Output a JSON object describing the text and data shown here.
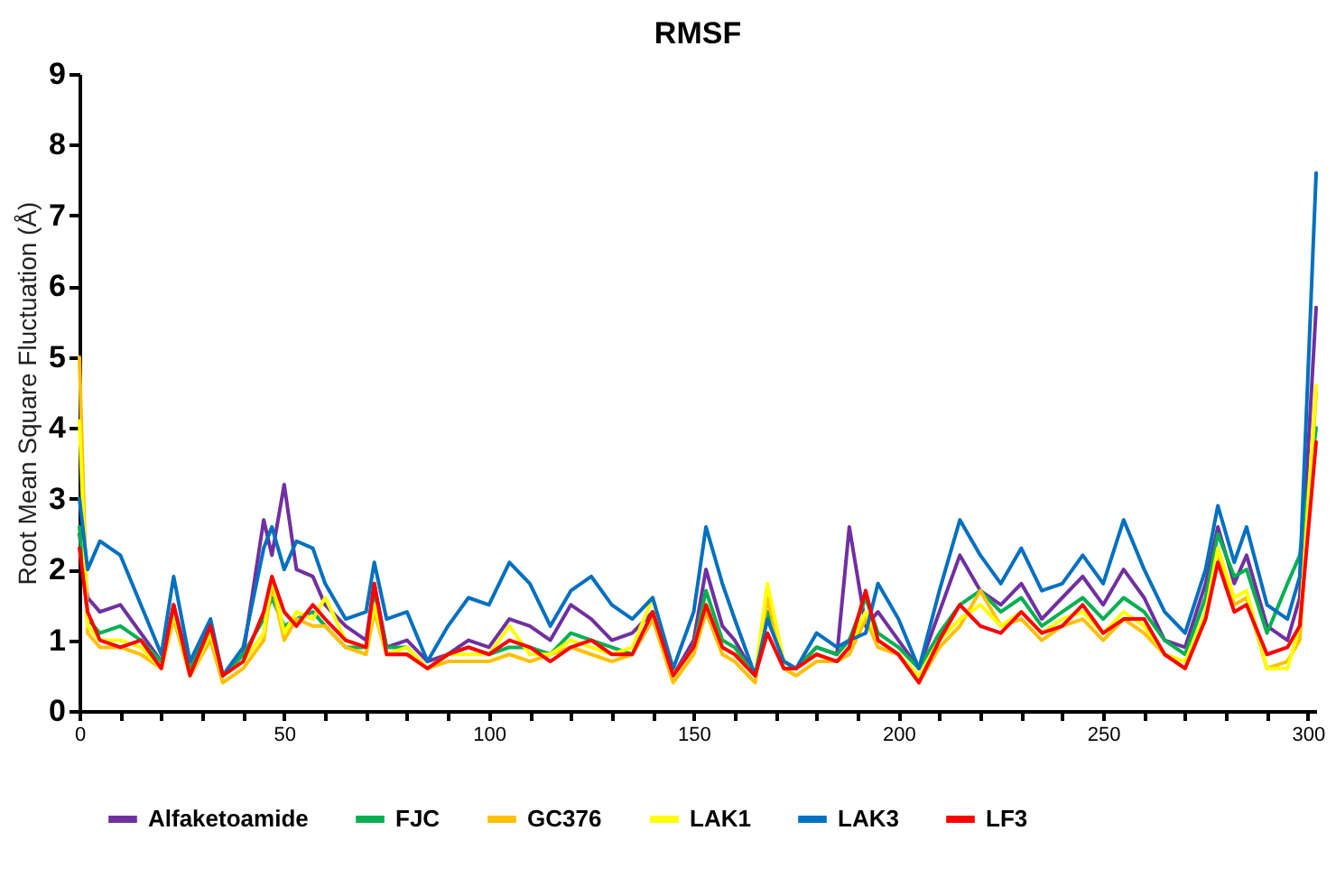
{
  "chart_data": {
    "type": "line",
    "title": "RMSF",
    "ylabel": "Root Mean Square Fluctuation (Å)",
    "x": [
      0,
      2,
      5,
      10,
      15,
      20,
      23,
      27,
      32,
      35,
      40,
      45,
      47,
      50,
      53,
      57,
      60,
      65,
      70,
      72,
      75,
      80,
      85,
      90,
      95,
      100,
      105,
      110,
      115,
      120,
      125,
      130,
      135,
      140,
      145,
      150,
      153,
      157,
      160,
      165,
      168,
      172,
      175,
      180,
      185,
      188,
      192,
      195,
      200,
      205,
      210,
      215,
      220,
      225,
      230,
      235,
      240,
      245,
      250,
      255,
      260,
      265,
      270,
      275,
      278,
      282,
      285,
      290,
      295,
      298,
      302
    ],
    "series": [
      {
        "name": "Alfaketoamide",
        "color": "#7030a0",
        "values": [
          2.5,
          1.6,
          1.4,
          1.5,
          1.1,
          0.7,
          1.5,
          0.6,
          1.2,
          0.5,
          0.8,
          2.7,
          2.2,
          3.2,
          2.0,
          1.9,
          1.5,
          1.2,
          1.0,
          1.8,
          0.9,
          1.0,
          0.7,
          0.8,
          1.0,
          0.9,
          1.3,
          1.2,
          1.0,
          1.5,
          1.3,
          1.0,
          1.1,
          1.4,
          0.5,
          1.0,
          2.0,
          1.2,
          1.0,
          0.5,
          1.4,
          0.7,
          0.6,
          0.9,
          0.8,
          2.6,
          1.2,
          1.4,
          1.0,
          0.6,
          1.4,
          2.2,
          1.7,
          1.5,
          1.8,
          1.3,
          1.6,
          1.9,
          1.5,
          2.0,
          1.6,
          1.0,
          0.9,
          1.8,
          2.6,
          1.8,
          2.2,
          1.2,
          1.0,
          1.6,
          5.7
        ]
      },
      {
        "name": "FJC",
        "color": "#00b050",
        "values": [
          2.6,
          1.3,
          1.1,
          1.2,
          1.0,
          0.7,
          1.4,
          0.6,
          1.2,
          0.5,
          0.8,
          1.3,
          1.6,
          1.2,
          1.3,
          1.4,
          1.2,
          0.9,
          0.9,
          1.7,
          0.9,
          0.9,
          0.6,
          0.8,
          0.9,
          0.8,
          0.9,
          0.9,
          0.8,
          1.1,
          1.0,
          0.9,
          0.8,
          1.3,
          0.5,
          0.9,
          1.7,
          1.0,
          0.9,
          0.5,
          1.4,
          0.7,
          0.6,
          0.9,
          0.8,
          1.0,
          1.6,
          1.1,
          0.9,
          0.6,
          1.1,
          1.5,
          1.7,
          1.4,
          1.6,
          1.2,
          1.4,
          1.6,
          1.3,
          1.6,
          1.4,
          1.0,
          0.8,
          1.6,
          2.5,
          1.9,
          2.0,
          1.1,
          1.8,
          2.2,
          4.0
        ]
      },
      {
        "name": "GC376",
        "color": "#ffc000",
        "values": [
          5.0,
          1.1,
          0.9,
          0.9,
          0.8,
          0.6,
          1.3,
          0.5,
          1.0,
          0.4,
          0.6,
          1.0,
          1.8,
          1.0,
          1.3,
          1.2,
          1.2,
          0.9,
          0.8,
          1.4,
          0.8,
          0.8,
          0.6,
          0.7,
          0.7,
          0.7,
          0.8,
          0.7,
          0.8,
          0.9,
          0.8,
          0.7,
          0.8,
          1.3,
          0.4,
          0.8,
          1.4,
          0.8,
          0.7,
          0.4,
          1.6,
          0.6,
          0.5,
          0.7,
          0.7,
          0.8,
          1.3,
          0.9,
          0.8,
          0.4,
          0.9,
          1.2,
          1.7,
          1.2,
          1.3,
          1.0,
          1.2,
          1.3,
          1.0,
          1.3,
          1.1,
          0.8,
          0.6,
          1.3,
          2.2,
          1.5,
          1.6,
          0.6,
          0.7,
          1.0,
          4.5
        ]
      },
      {
        "name": "LAK1",
        "color": "#ffff00",
        "values": [
          4.1,
          1.2,
          1.0,
          1.0,
          0.9,
          0.6,
          1.4,
          0.5,
          1.1,
          0.5,
          0.7,
          1.1,
          1.9,
          1.1,
          1.4,
          1.3,
          1.6,
          1.0,
          0.9,
          1.5,
          0.8,
          0.9,
          0.6,
          0.8,
          0.8,
          0.8,
          1.2,
          0.8,
          0.8,
          1.0,
          0.9,
          0.8,
          0.9,
          1.6,
          0.5,
          0.9,
          1.5,
          0.9,
          0.8,
          0.5,
          1.8,
          0.7,
          0.6,
          0.8,
          0.7,
          0.9,
          1.4,
          1.0,
          0.8,
          0.5,
          1.0,
          1.3,
          1.5,
          1.2,
          1.4,
          1.1,
          1.3,
          1.4,
          1.1,
          1.4,
          1.2,
          0.8,
          0.7,
          1.4,
          2.3,
          1.6,
          1.7,
          0.6,
          0.6,
          1.2,
          4.6
        ]
      },
      {
        "name": "LAK3",
        "color": "#0070c0",
        "values": [
          3.0,
          2.0,
          2.4,
          2.2,
          1.5,
          0.8,
          1.9,
          0.7,
          1.3,
          0.5,
          0.9,
          2.3,
          2.6,
          2.0,
          2.4,
          2.3,
          1.8,
          1.3,
          1.4,
          2.1,
          1.3,
          1.4,
          0.7,
          1.2,
          1.6,
          1.5,
          2.1,
          1.8,
          1.2,
          1.7,
          1.9,
          1.5,
          1.3,
          1.6,
          0.6,
          1.4,
          2.6,
          1.8,
          1.3,
          0.5,
          1.3,
          0.7,
          0.6,
          1.1,
          0.9,
          1.0,
          1.1,
          1.8,
          1.3,
          0.6,
          1.7,
          2.7,
          2.2,
          1.8,
          2.3,
          1.7,
          1.8,
          2.2,
          1.8,
          2.7,
          2.0,
          1.4,
          1.1,
          2.0,
          2.9,
          2.1,
          2.6,
          1.5,
          1.3,
          1.9,
          7.6
        ]
      },
      {
        "name": "LF3",
        "color": "#ff0000",
        "values": [
          2.3,
          1.4,
          1.0,
          0.9,
          1.0,
          0.6,
          1.5,
          0.5,
          1.2,
          0.5,
          0.7,
          1.4,
          1.9,
          1.4,
          1.2,
          1.5,
          1.3,
          1.0,
          0.9,
          1.8,
          0.8,
          0.8,
          0.6,
          0.8,
          0.9,
          0.8,
          1.0,
          0.9,
          0.7,
          0.9,
          1.0,
          0.8,
          0.8,
          1.4,
          0.5,
          0.9,
          1.5,
          0.9,
          0.8,
          0.5,
          1.1,
          0.6,
          0.6,
          0.8,
          0.7,
          0.9,
          1.7,
          1.0,
          0.8,
          0.4,
          1.0,
          1.5,
          1.2,
          1.1,
          1.4,
          1.1,
          1.2,
          1.5,
          1.1,
          1.3,
          1.3,
          0.8,
          0.6,
          1.3,
          2.1,
          1.4,
          1.5,
          0.8,
          0.9,
          1.2,
          3.8
        ]
      }
    ],
    "xlim": [
      0,
      302
    ],
    "xticks": [
      0,
      {
        "value": 10,
        "label": null
      },
      {
        "value": 20,
        "label": null
      },
      {
        "value": 30,
        "label": null
      },
      {
        "value": 40,
        "label": null
      },
      50,
      {
        "value": 60,
        "label": null
      },
      {
        "value": 70,
        "label": null
      },
      {
        "value": 80,
        "label": null
      },
      {
        "value": 90,
        "label": null
      },
      100,
      {
        "value": 110,
        "label": null
      },
      {
        "value": 120,
        "label": null
      },
      {
        "value": 130,
        "label": null
      },
      {
        "value": 140,
        "label": null
      },
      150,
      {
        "value": 160,
        "label": null
      },
      {
        "value": 170,
        "label": null
      },
      {
        "value": 180,
        "label": null
      },
      {
        "value": 190,
        "label": null
      },
      200,
      {
        "value": 210,
        "label": null
      },
      {
        "value": 220,
        "label": null
      },
      {
        "value": 230,
        "label": null
      },
      {
        "value": 240,
        "label": null
      },
      250,
      {
        "value": 260,
        "label": null
      },
      {
        "value": 270,
        "label": null
      },
      {
        "value": 280,
        "label": null
      },
      {
        "value": 290,
        "label": null
      },
      300
    ],
    "ylim": [
      0,
      9
    ],
    "yticks": [
      0,
      1,
      2,
      3,
      4,
      5,
      6,
      7,
      8,
      9
    ],
    "grid": false,
    "legend": "bottom",
    "line_style": "solid"
  }
}
